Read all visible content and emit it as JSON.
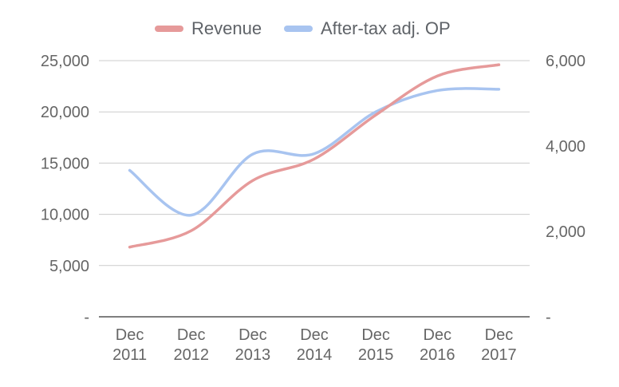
{
  "chart_data": {
    "type": "line",
    "categories": [
      [
        "Dec",
        "2011"
      ],
      [
        "Dec",
        "2012"
      ],
      [
        "Dec",
        "2013"
      ],
      [
        "Dec",
        "2014"
      ],
      [
        "Dec",
        "2015"
      ],
      [
        "Dec",
        "2016"
      ],
      [
        "Dec",
        "2017"
      ]
    ],
    "series": [
      {
        "name": "Revenue",
        "axis": "left",
        "color": "#e69a9a",
        "values": [
          6800,
          8400,
          13300,
          15400,
          19700,
          23500,
          24600
        ]
      },
      {
        "name": "After-tax adj. OP",
        "axis": "right",
        "color": "#a8c4f0",
        "values": [
          3430,
          2380,
          3810,
          3820,
          4800,
          5300,
          5330
        ]
      }
    ],
    "y_left": {
      "ylim": [
        0,
        25000
      ],
      "ticks": [
        0,
        5000,
        10000,
        15000,
        20000,
        25000
      ],
      "tick_labels": [
        "-",
        "5,000",
        "10,000",
        "15,000",
        "20,000",
        "25,000"
      ]
    },
    "y_right": {
      "ylim": [
        0,
        6000
      ],
      "ticks": [
        0,
        2000,
        4000,
        6000
      ],
      "tick_labels": [
        "-",
        "2,000",
        "4,000",
        "6,000"
      ]
    },
    "grid": true,
    "legend": "top"
  }
}
